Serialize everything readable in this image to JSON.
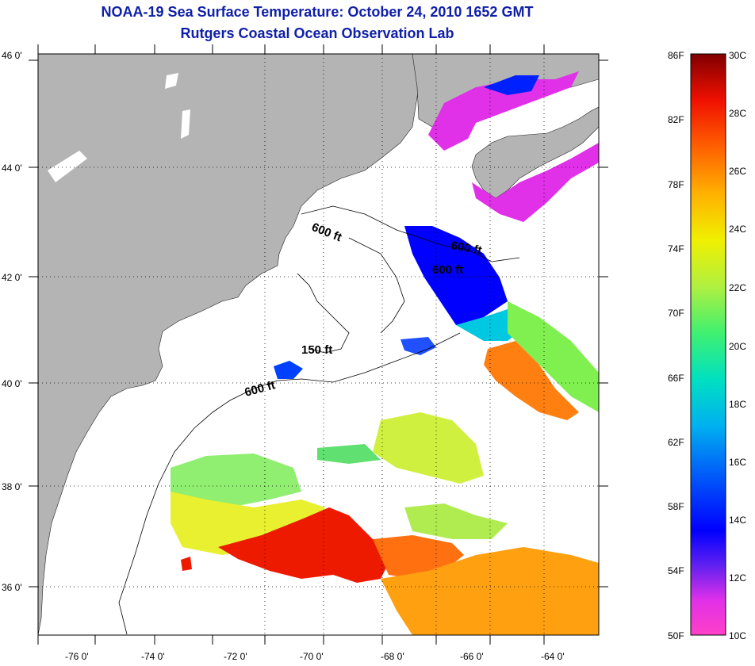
{
  "title": {
    "line1": "NOAA-19 Sea Surface Temperature:  October 24, 2010 1652 GMT",
    "line2": "Rutgers Coastal Ocean Observation Lab"
  },
  "axes": {
    "lat_labels": [
      "46 0'",
      "44 0'",
      "42 0'",
      "40 0'",
      "38 0'",
      "36 0'"
    ],
    "lon_labels": [
      "-76 0'",
      "-74 0'",
      "-72 0'",
      "-70 0'",
      "-68 0'",
      "-66 0'",
      "-64 0'"
    ]
  },
  "contours": {
    "label_600a": "600 ft",
    "label_600b": "600 ft",
    "label_600c": "600 ft",
    "label_150": "150 ft",
    "label_600d": "600 ft"
  },
  "colorbar": {
    "fahrenheit": [
      "86F",
      "82F",
      "78F",
      "74F",
      "70F",
      "66F",
      "62F",
      "58F",
      "54F",
      "50F"
    ],
    "celsius": [
      "30C",
      "28C",
      "26C",
      "24C",
      "22C",
      "20C",
      "18C",
      "16C",
      "14C",
      "12C",
      "10C"
    ]
  },
  "colors": {
    "land": "#b4b4b4",
    "ocean": "#ffffff",
    "cold": "#0000ff",
    "warm": "#ff2000",
    "title": "#0f1fa8"
  }
}
